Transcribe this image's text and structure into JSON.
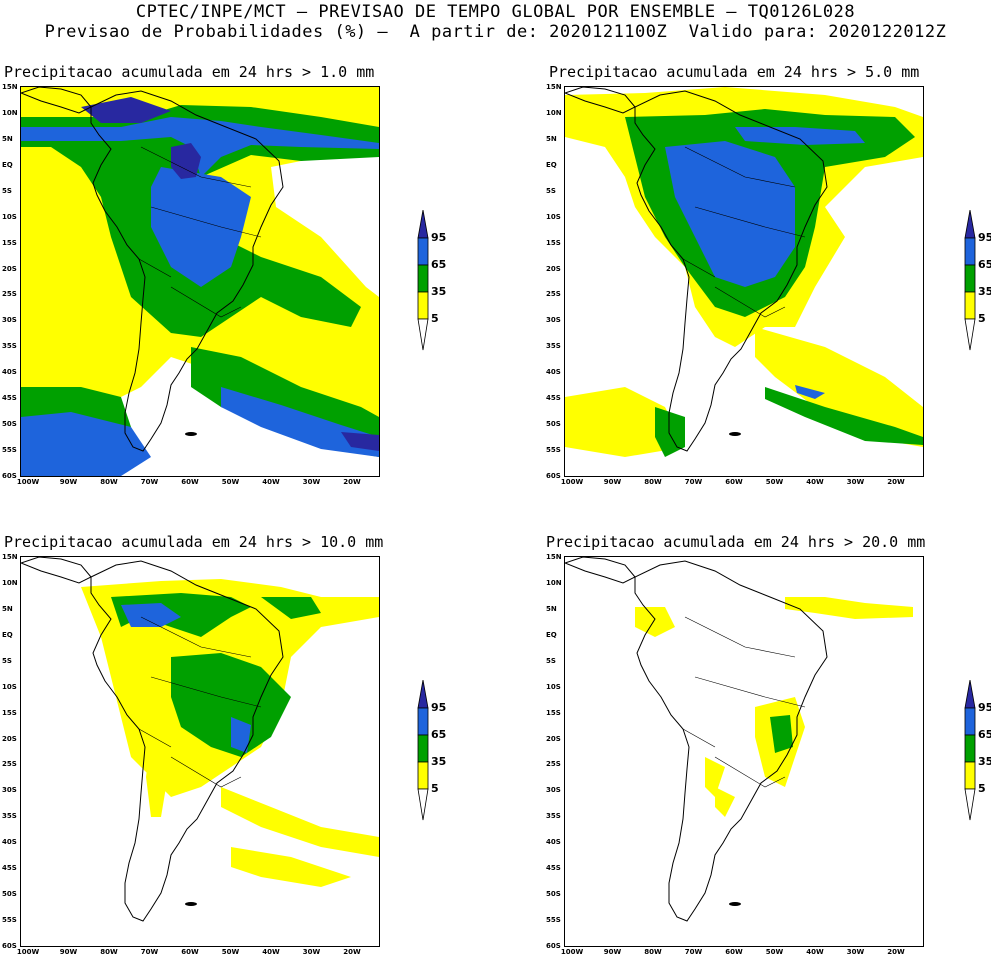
{
  "header": {
    "line1": "CPTEC/INPE/MCT – PREVISAO DE TEMPO GLOBAL POR ENSEMBLE – TQ0126L028",
    "line2": "Previsao de Probabilidades (%) –  A partir de: 2020121100Z  Valido para: 2020122012Z"
  },
  "axes": {
    "lat_labels": [
      "15N",
      "10N",
      "5N",
      "EQ",
      "5S",
      "10S",
      "15S",
      "20S",
      "25S",
      "30S",
      "35S",
      "40S",
      "45S",
      "50S",
      "55S",
      "60S"
    ],
    "lon_labels": [
      "100W",
      "90W",
      "80W",
      "70W",
      "60W",
      "50W",
      "40W",
      "30W",
      "20W"
    ]
  },
  "legend": {
    "levels": [
      "5",
      "35",
      "65",
      "95"
    ],
    "colors": [
      "#ffff00",
      "#00a000",
      "#1e64dc",
      "#2828a0"
    ]
  },
  "panels": [
    {
      "title": "Precipitacao acumulada em 24 hrs > 1.0 mm"
    },
    {
      "title": "Precipitacao acumulada em 24 hrs > 5.0 mm"
    },
    {
      "title": "Precipitacao acumulada em 24 hrs > 10.0 mm"
    },
    {
      "title": "Precipitacao acumulada em 24 hrs > 20.0 mm"
    }
  ]
}
